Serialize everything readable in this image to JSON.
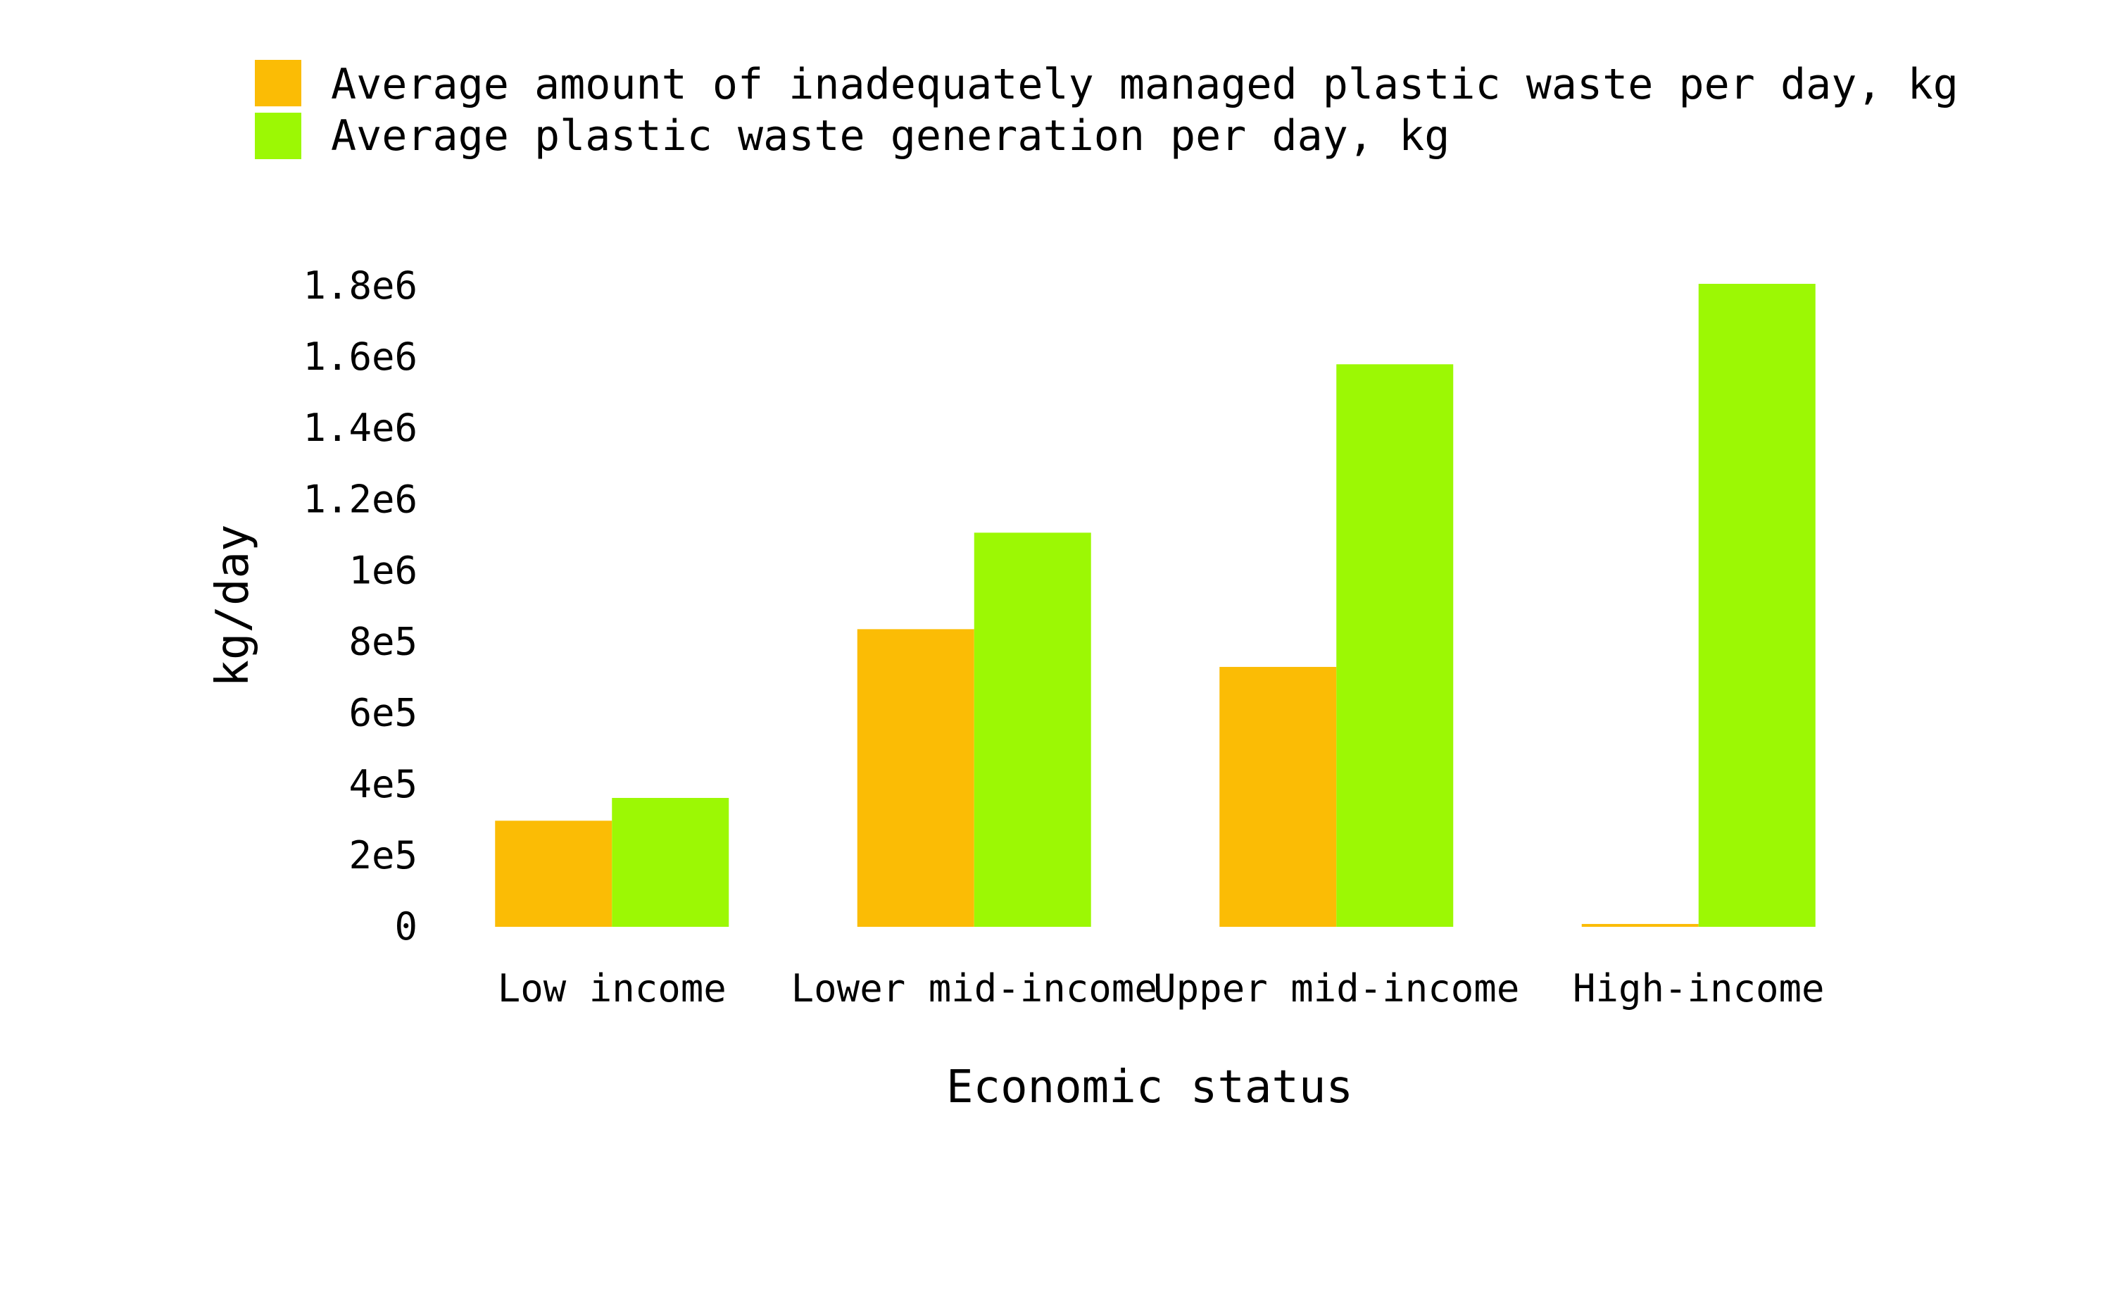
{
  "chart_data": {
    "type": "bar",
    "title": "",
    "xlabel": "Economic status",
    "ylabel": "kg/day",
    "categories": [
      "Low income",
      "Lower mid-income",
      "Upper mid-income",
      "High-income"
    ],
    "series": [
      {
        "name": "Average amount of inadequately managed plastic waste per day, kg",
        "color": "#FBBC05",
        "values": [
          298000,
          836000,
          730000,
          8000
        ]
      },
      {
        "name": "Average plastic waste generation per day, kg",
        "color": "#9CF804",
        "values": [
          362000,
          1107000,
          1580000,
          1806000
        ]
      }
    ],
    "ylim": [
      0,
      1806000
    ],
    "yticks": [
      {
        "value": 0,
        "label": "0"
      },
      {
        "value": 200000,
        "label": "2e5"
      },
      {
        "value": 400000,
        "label": "4e5"
      },
      {
        "value": 600000,
        "label": "6e5"
      },
      {
        "value": 800000,
        "label": "8e5"
      },
      {
        "value": 1000000,
        "label": "1e6"
      },
      {
        "value": 1200000,
        "label": "1.2e6"
      },
      {
        "value": 1400000,
        "label": "1.4e6"
      },
      {
        "value": 1600000,
        "label": "1.6e6"
      },
      {
        "value": 1800000,
        "label": "1.8e6"
      }
    ],
    "grid": false,
    "legend_position": "top"
  }
}
